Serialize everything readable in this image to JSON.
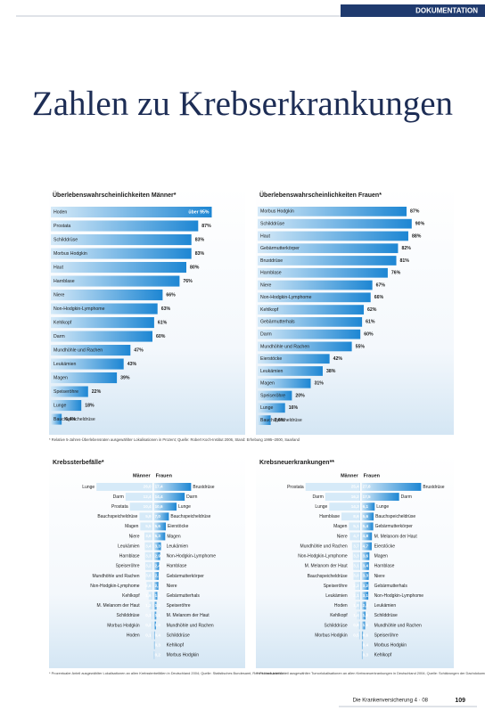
{
  "header": {
    "section": "DOKUMENTATION",
    "title": "Zahlen zu Krebserkrankungen"
  },
  "chart_data": [
    {
      "type": "bar",
      "title": "Überlebenswahrscheinlichkeiten Männer*",
      "color": "#1d86d3",
      "xlim": [
        0,
        100
      ],
      "categories": [
        "Hoden",
        "Prostata",
        "Schilddrüse",
        "Morbus Hodgkin",
        "Haut",
        "Harnblase",
        "Niere",
        "Non-Hodgkin-Lymphome",
        "Kehlkopf",
        "Darm",
        "Mundhöhle und Rachen",
        "Leukämien",
        "Magen",
        "Speiseröhre",
        "Lunge",
        "Bauchspeicheldrüse"
      ],
      "values": [
        95,
        87,
        83,
        83,
        80,
        76,
        66,
        63,
        61,
        60,
        47,
        43,
        39,
        22,
        18,
        6.4
      ],
      "value_labels": [
        "über 95%",
        "87%",
        "83%",
        "83%",
        "80%",
        "76%",
        "66%",
        "63%",
        "61%",
        "60%",
        "47%",
        "43%",
        "39%",
        "22%",
        "18%",
        "6,4%"
      ],
      "note": "* Relative 5-Jahres-Überlebensraten ausgewählter Lokalisationen in Prozent; Quelle: Robert Koch-Institut 2006, Stand: Erhebung 1995–2000, Saarland"
    },
    {
      "type": "bar",
      "title": "Überlebenswahrscheinlichkeiten Frauen*",
      "color": "#1d86d3",
      "xlim": [
        0,
        100
      ],
      "categories": [
        "Morbus Hodgkin",
        "Schilddrüse",
        "Haut",
        "Gebärmutterkörper",
        "Brustdrüse",
        "Harnblase",
        "Niere",
        "Non-Hodgkin-Lymphome",
        "Kehlkopf",
        "Gebärmutterhals",
        "Darm",
        "Mundhöhle und Rachen",
        "Eierstöcke",
        "Leukämien",
        "Magen",
        "Speiseröhre",
        "Lunge",
        "Bauchspeicheldrüse"
      ],
      "values": [
        87,
        90,
        88,
        82,
        81,
        76,
        67,
        66,
        62,
        61,
        60,
        55,
        42,
        38,
        31,
        20,
        16,
        7.6
      ],
      "value_labels": [
        "87%",
        "90%",
        "88%",
        "82%",
        "81%",
        "76%",
        "67%",
        "66%",
        "62%",
        "61%",
        "60%",
        "55%",
        "42%",
        "38%",
        "31%",
        "20%",
        "16%",
        "7,6%"
      ]
    },
    {
      "type": "butterfly",
      "title": "Krebssterbefälle*",
      "xlim": [
        0,
        30
      ],
      "color": "#1d86d3",
      "series": [
        {
          "name": "Männer",
          "categories": [
            "Lunge",
            "Darm",
            "Prostata",
            "Bauchspeicheldrüse",
            "Magen",
            "Niere",
            "Leukämien",
            "Harnblase",
            "Speiseröhre",
            "Mundhöhle und Rachen",
            "Non-Hodgkin-Lymphome",
            "Kehlkopf",
            "M. Melanom der Haut",
            "Schilddrüse",
            "Morbus Hodgkin",
            "Hoden"
          ],
          "values": [
            26.0,
            12.4,
            10.4,
            5.9,
            5.5,
            3.6,
            3.4,
            3.3,
            3.2,
            3.0,
            2.6,
            1.6,
            1.2,
            0.3,
            0.2,
            0.1
          ],
          "value_labels": [
            "26,0",
            "12,4",
            "10,4",
            "5,9",
            "5,5",
            "3,6",
            "3,4",
            "3,3",
            "3,2",
            "3,0",
            "2,6",
            "1,6",
            "1,2",
            "0,3",
            "0,2",
            "0,1"
          ]
        },
        {
          "name": "Frauen",
          "categories": [
            "Brustdrüse",
            "Darm",
            "Lunge",
            "Bauchspeicheldrüse",
            "Eierstöcke",
            "Magen",
            "Leukämien",
            "Non-Hodgkin-Lymphome",
            "Harnblase",
            "Gebärmutterkörper",
            "Niere",
            "Gebärmutterhals",
            "Speiseröhre",
            "M. Melanom der Haut",
            "Mundhöhle und Rachen",
            "Schilddrüse",
            "Kehlkopf",
            "Morbus Hodgkin"
          ],
          "values": [
            17.4,
            14.4,
            10.6,
            7.0,
            5.6,
            5.3,
            3.3,
            2.9,
            2.4,
            2.2,
            2.1,
            1.6,
            1.2,
            1.1,
            1.0,
            0.4,
            0.3,
            0.2
          ],
          "value_labels": [
            "17,4",
            "14,4",
            "10,6",
            "7,0",
            "5,6",
            "5,3",
            "3,3",
            "2,9",
            "2,4",
            "2,2",
            "2,1",
            "1,6",
            "1,2",
            "1,1",
            "1,0",
            "0,4",
            "0,3",
            "0,2"
          ]
        }
      ],
      "note": "* Prozentualer Anteil ausgewählter Lokalisationen an allen Krebssterbefällen in Deutschland 2004; Quelle: Statistisches Bundesamt, Robert Koch-Institut"
    },
    {
      "type": "butterfly",
      "title": "Krebsneuerkrankungen**",
      "xlim": [
        0,
        30
      ],
      "color": "#1d86d3",
      "series": [
        {
          "name": "Männer",
          "categories": [
            "Prostata",
            "Darm",
            "Lunge",
            "Harnblase",
            "Magen",
            "Niere",
            "Mundhöhle und Rachen",
            "Non-Hodgkin-Lymphome",
            "M. Melanom der Haut",
            "Bauchspeicheldrüse",
            "Speiseröhre",
            "Leukämien",
            "Hoden",
            "Kehlkopf",
            "Schilddrüse",
            "Morbus Hodgkin"
          ],
          "values": [
            25.4,
            16.2,
            14.3,
            8.6,
            5.1,
            4.7,
            3.7,
            3.3,
            3.1,
            3.0,
            2.2,
            2.1,
            1.8,
            1.4,
            0.8,
            0.5
          ],
          "value_labels": [
            "25,4",
            "16,2",
            "14,3",
            "8,6",
            "5,1",
            "4,7",
            "3,7",
            "3,3",
            "3,1",
            "3,0",
            "2,2",
            "2,1",
            "1,8",
            "1,4",
            "0,8",
            "0,5"
          ]
        },
        {
          "name": "Frauen",
          "categories": [
            "Brustdrüse",
            "Darm",
            "Lunge",
            "Bauchspeicheldrüse",
            "Gebärmutterkörper",
            "M. Melanom der Haut",
            "Eierstöcke",
            "Magen",
            "Harnblase",
            "Niere",
            "Gebärmutterhals",
            "Non-Hodgkin-Lymphome",
            "Leukämien",
            "Schilddrüse",
            "Mundhöhle und Rachen",
            "Speiseröhre",
            "Morbus Hodgkin",
            "Kehlkopf"
          ],
          "values": [
            27.8,
            17.5,
            6.1,
            5.6,
            5.4,
            4.8,
            4.7,
            3.6,
            3.4,
            3.3,
            3.2,
            3.1,
            2.0,
            1.8,
            1.6,
            0.6,
            0.4,
            0.3
          ],
          "value_labels": [
            "27,8",
            "17,5",
            "6,1",
            "5,6",
            "5,4",
            "4,8",
            "4,7",
            "3,6",
            "3,4",
            "3,3",
            "3,2",
            "3,1",
            "2,0",
            "1,8",
            "1,6",
            "0,6",
            "0,4",
            "0,3"
          ]
        }
      ],
      "note": "** Prozentualer Anteil ausgewählter Tumorlokalisationen an allen Krebsneuerkrankungen in Deutschland 2004; Quelle: Schätzungen der Dachdokumentation Krebs im Robert Koch-Institut"
    }
  ],
  "footer": {
    "journal": "Die Krankenversicherung 4 · 08",
    "page": "109"
  }
}
